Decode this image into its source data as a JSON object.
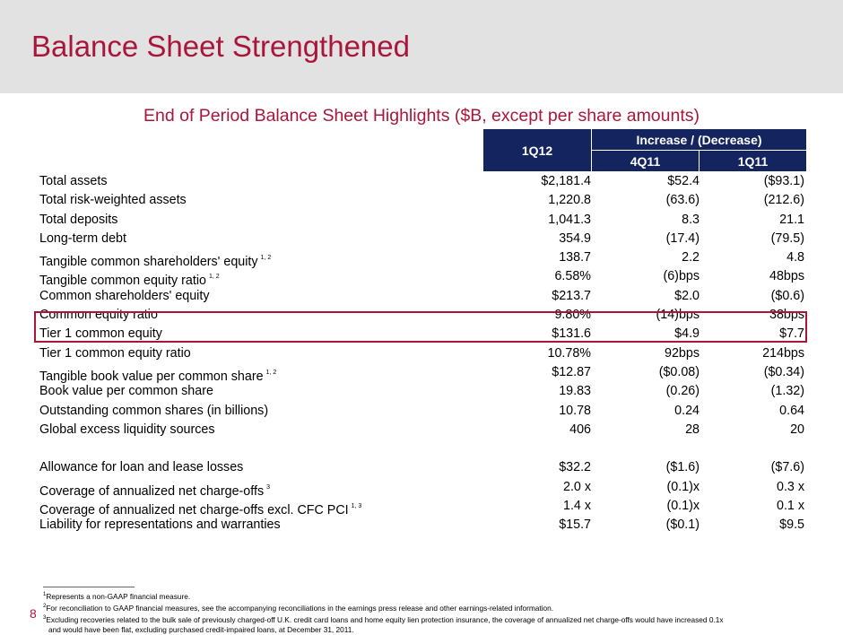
{
  "title": "Balance Sheet Strengthened",
  "subtitle": "End of Period Balance Sheet Highlights ($B, except per share amounts)",
  "table": {
    "col_1q12": "1Q12",
    "group_header": "Increase / (Decrease)",
    "col_4q11": "4Q11",
    "col_1q11": "1Q11",
    "rows": [
      {
        "label": "Total assets",
        "sup": "",
        "v1": "$2,181.4",
        "v2": "$52.4",
        "v3": "($93.1)"
      },
      {
        "label": "Total risk-weighted assets",
        "sup": "",
        "v1": "1,220.8",
        "v2": "(63.6)",
        "v3": "(212.6)"
      },
      {
        "label": "Total deposits",
        "sup": "",
        "v1": "1,041.3",
        "v2": "8.3",
        "v3": "21.1"
      },
      {
        "label": "Long-term debt",
        "sup": "",
        "v1": "354.9",
        "v2": "(17.4)",
        "v3": "(79.5)"
      },
      {
        "label": "Tangible common shareholders' equity",
        "sup": "1, 2",
        "v1": "138.7",
        "v2": "2.2",
        "v3": "4.8"
      },
      {
        "label": "Tangible common equity ratio",
        "sup": "1, 2",
        "v1": "6.58%",
        "v2": "(6)bps",
        "v3": "48bps"
      },
      {
        "label": "Common shareholders' equity",
        "sup": "",
        "v1": "$213.7",
        "v2": "$2.0",
        "v3": "($0.6)"
      },
      {
        "label": "Common equity ratio",
        "sup": "",
        "v1": "9.80%",
        "v2": "(14)bps",
        "v3": "38bps"
      },
      {
        "label": "Tier 1 common equity",
        "sup": "",
        "v1": "$131.6",
        "v2": "$4.9",
        "v3": "$7.7"
      },
      {
        "label": "Tier 1 common equity ratio",
        "sup": "",
        "v1": "10.78%",
        "v2": "92bps",
        "v3": "214bps"
      },
      {
        "label": "Tangible book value per common share",
        "sup": "1, 2",
        "v1": "$12.87",
        "v2": "($0.08)",
        "v3": "($0.34)"
      },
      {
        "label": "Book value per common share",
        "sup": "",
        "v1": "19.83",
        "v2": "(0.26)",
        "v3": "(1.32)"
      },
      {
        "label": "Outstanding common shares (in billions)",
        "sup": "",
        "v1": "10.78",
        "v2": "0.24",
        "v3": "0.64"
      },
      {
        "label": "Global excess liquidity sources",
        "sup": "",
        "v1": "406",
        "v2": "28",
        "v3": "20"
      }
    ],
    "rows2": [
      {
        "label": "Allowance for loan and lease losses",
        "sup": "",
        "v1": "$32.2",
        "v2": "($1.6)",
        "v3": "($7.6)"
      },
      {
        "label": "Coverage of annualized net charge-offs",
        "sup": "3",
        "v1": "2.0 x",
        "v2": "(0.1)x",
        "v3": "0.3 x"
      },
      {
        "label": "Coverage of annualized net charge-offs excl. CFC PCI",
        "sup": "1, 3",
        "v1": "1.4 x",
        "v2": "(0.1)x",
        "v3": "0.1 x"
      },
      {
        "label": "Liability for representations and warranties",
        "sup": "",
        "v1": "$15.7",
        "v2": "($0.1)",
        "v3": "$9.5"
      }
    ]
  },
  "footnotes": [
    {
      "num": "1",
      "text": "Represents a non-GAAP financial measure."
    },
    {
      "num": "2",
      "text": "For reconciliation to GAAP financial measures, see the accompanying reconciliations in the earnings press release and other earnings-related information."
    },
    {
      "num": "3",
      "text": "Excluding recoveries related to the bulk sale of previously charged-off U.K. credit card loans and home equity lien protection insurance, the coverage of annualized net charge-offs would have increased 0.1x"
    },
    {
      "num": "",
      "text": "and would have been flat, excluding purchased credit-impaired loans, at December 31, 2011."
    }
  ],
  "page_number": "8",
  "colors": {
    "brand": "#a8173a",
    "header_fill": "#14245e",
    "band": "#e2e2e2"
  }
}
